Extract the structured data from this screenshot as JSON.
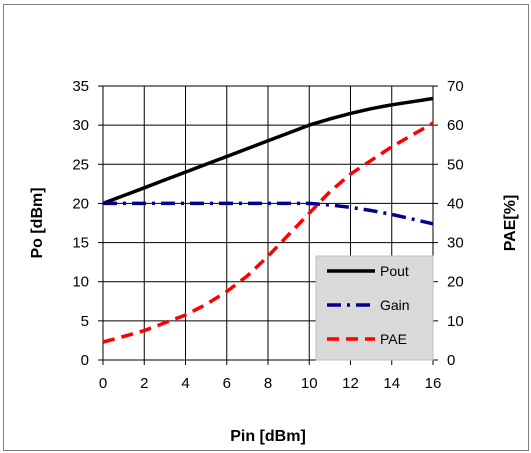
{
  "chart_data": {
    "type": "line",
    "x": [
      0,
      1,
      2,
      3,
      4,
      5,
      6,
      7,
      8,
      9,
      10,
      11,
      12,
      13,
      14,
      15,
      16
    ],
    "xlabel": "Pin [dBm]",
    "xlim": [
      0,
      16
    ],
    "xticks": [
      "0",
      "2",
      "4",
      "6",
      "8",
      "10",
      "12",
      "14",
      "16"
    ],
    "ylabel": "Po [dBm]",
    "ylim": [
      0,
      35
    ],
    "yticks": [
      "0",
      "5",
      "10",
      "15",
      "20",
      "25",
      "30",
      "35"
    ],
    "y2label": "PAE[%]",
    "y2lim": [
      0,
      70
    ],
    "y2ticks": [
      "0",
      "10",
      "20",
      "30",
      "40",
      "50",
      "60",
      "70"
    ],
    "grid": true,
    "legend_position": "bottom-right",
    "series": [
      {
        "name": "Pout",
        "axis": "left",
        "color": "#000000",
        "style": "solid",
        "values": [
          20.0,
          21.0,
          22.0,
          23.0,
          24.0,
          25.0,
          26.0,
          27.0,
          28.0,
          29.0,
          30.0,
          30.8,
          31.5,
          32.1,
          32.6,
          33.0,
          33.4
        ]
      },
      {
        "name": "Gain",
        "axis": "left",
        "color": "#00008b",
        "style": "dash-dot",
        "values": [
          20.0,
          20.0,
          20.0,
          20.0,
          20.0,
          20.0,
          20.0,
          20.0,
          20.0,
          20.0,
          20.0,
          19.8,
          19.5,
          19.1,
          18.6,
          18.0,
          17.4
        ]
      },
      {
        "name": "PAE",
        "axis": "right",
        "color": "#ff0000",
        "style": "dashed",
        "values": [
          4.6,
          6.0,
          7.5,
          9.5,
          11.5,
          14.2,
          17.5,
          21.5,
          26.5,
          32.0,
          37.5,
          43.0,
          47.5,
          51.0,
          54.5,
          57.5,
          60.5
        ]
      }
    ]
  }
}
